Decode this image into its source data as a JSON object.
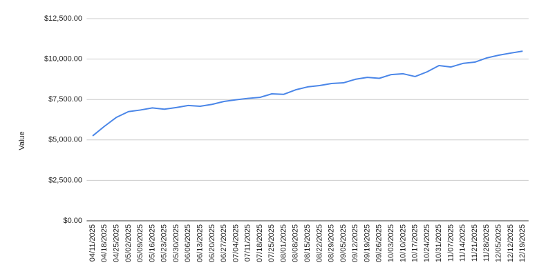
{
  "chart_data": {
    "type": "line",
    "y_label": "Value",
    "categories": [
      "04/11/2025",
      "04/18/2025",
      "04/25/2025",
      "05/02/2025",
      "05/09/2025",
      "05/16/2025",
      "05/23/2025",
      "05/30/2025",
      "06/06/2025",
      "06/13/2025",
      "06/20/2025",
      "06/27/2025",
      "07/04/2025",
      "07/11/2025",
      "07/18/2025",
      "07/25/2025",
      "08/01/2025",
      "08/08/2025",
      "08/15/2025",
      "08/22/2025",
      "08/29/2025",
      "09/05/2025",
      "09/12/2025",
      "09/19/2025",
      "09/26/2025",
      "10/03/2025",
      "10/10/2025",
      "10/17/2025",
      "10/24/2025",
      "10/31/2025",
      "11/07/2025",
      "11/14/2025",
      "11/21/2025",
      "11/28/2025",
      "12/05/2025",
      "12/12/2025",
      "12/19/2025"
    ],
    "values": [
      5250,
      5850,
      6400,
      6750,
      6850,
      6980,
      6900,
      7000,
      7130,
      7080,
      7200,
      7380,
      7480,
      7570,
      7630,
      7850,
      7820,
      8100,
      8280,
      8360,
      8490,
      8530,
      8750,
      8870,
      8810,
      9040,
      9090,
      8920,
      9210,
      9600,
      9510,
      9730,
      9810,
      10070,
      10240,
      10370,
      10490
    ],
    "color": "#4a86e8",
    "ylim": [
      0,
      12500
    ],
    "yticks": [
      {
        "value": 0,
        "label": "$0.00"
      },
      {
        "value": 2500,
        "label": "$2,500.00"
      },
      {
        "value": 5000,
        "label": "$5,000.00"
      },
      {
        "value": 7500,
        "label": "$7,500.00"
      },
      {
        "value": 10000,
        "label": "$10,000.00"
      },
      {
        "value": 12500,
        "label": "$12,500.00"
      }
    ],
    "grid": true
  }
}
